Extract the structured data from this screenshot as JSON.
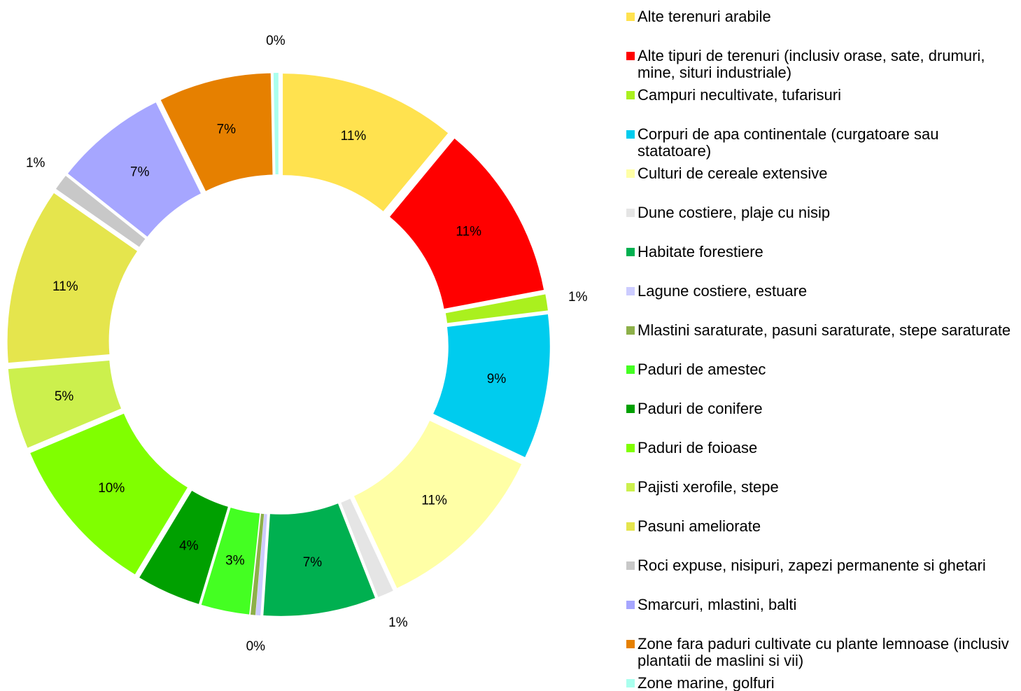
{
  "chart_data": {
    "type": "donut",
    "categories": [
      "Alte terenuri arabile",
      "Alte tipuri de terenuri (inclusiv orase, sate, drumuri, mine, situri industriale)",
      "Campuri necultivate, tufarisuri",
      "Corpuri de apa continentale (curgatoare sau statatoare)",
      "Culturi de cereale extensive",
      "Dune costiere, plaje cu nisip",
      "Habitate forestiere",
      "Lagune costiere, estuare",
      "Mlastini saraturate, pasuni saraturate, stepe saraturate",
      "Paduri de amestec",
      "Paduri de conifere",
      "Paduri de foioase",
      "Pajisti xerofile, stepe",
      "Pasuni ameliorate",
      "Roci expuse, nisipuri, zapezi permanente si ghetari",
      "Smarcuri, mlastini, balti",
      "Zone fara paduri cultivate cu plante lemnoase (inclusiv plantatii de maslini si vii)",
      "Zone marine, golfuri"
    ],
    "values": [
      11,
      11,
      1,
      9,
      11,
      1,
      7,
      0.3,
      0.3,
      3,
      4,
      10,
      5,
      11,
      1,
      7,
      7,
      0.3
    ],
    "value_labels": [
      "11%",
      "11%",
      "1%",
      "9%",
      "11%",
      "1%",
      "7%",
      "0%",
      null,
      "3%",
      "4%",
      "10%",
      "5%",
      "11%",
      "1%",
      "7%",
      "7%",
      "0%"
    ],
    "colors": [
      "#ffe24f",
      "#ff0000",
      "#aaf01e",
      "#00ccee",
      "#ffffa6",
      "#e5e5e5",
      "#00b050",
      "#ccccff",
      "#8db049",
      "#44ff22",
      "#00a000",
      "#80ff00",
      "#ccf04d",
      "#e5e54d",
      "#c8c8c8",
      "#a6a6ff",
      "#e68000",
      "#aaffee"
    ],
    "legend": "right"
  }
}
